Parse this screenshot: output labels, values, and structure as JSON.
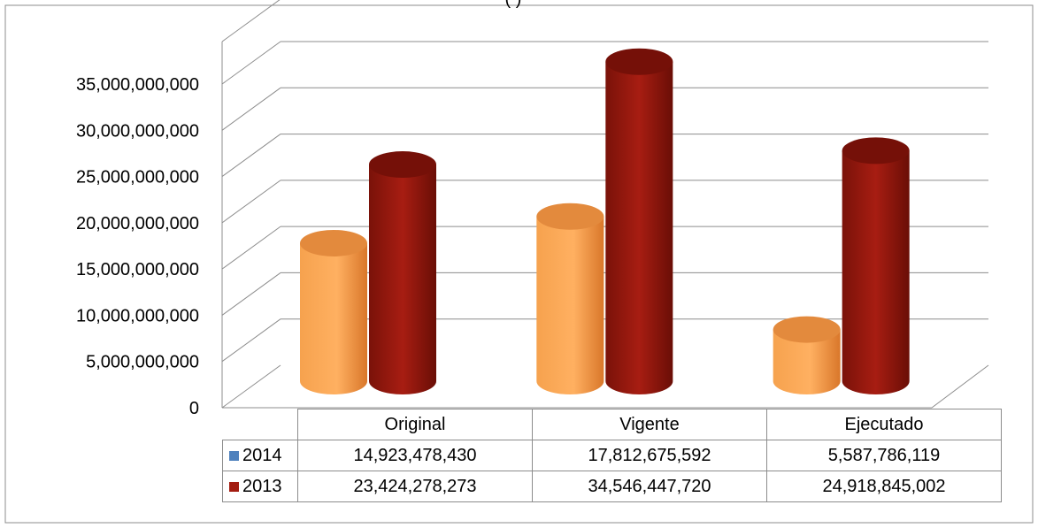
{
  "title_fragment": "(                    )",
  "chart_data": {
    "type": "bar",
    "categories": [
      "Original",
      "Vigente",
      "Ejecutado"
    ],
    "series": [
      {
        "name": "2014",
        "values": [
          14923478430,
          17812675592,
          5587786119
        ],
        "display": [
          "14,923,478,430",
          "17,812,675,592",
          "5,587,786,119"
        ],
        "color": "#f79646"
      },
      {
        "name": "2013",
        "values": [
          23424278273,
          34546447720,
          24918845002
        ],
        "display": [
          "23,424,278,273",
          "34,546,447,720",
          "24,918,845,002"
        ],
        "color": "#8b1a10"
      }
    ],
    "legend_colors": [
      "#4f81bd",
      "#a31c11"
    ],
    "yticks": [
      "0",
      "5,000,000,000",
      "10,000,000,000",
      "15,000,000,000",
      "20,000,000,000",
      "25,000,000,000",
      "30,000,000,000",
      "35,000,000,000"
    ],
    "ylim": [
      0,
      35000000000
    ],
    "grid": true,
    "legend": "data-table"
  }
}
